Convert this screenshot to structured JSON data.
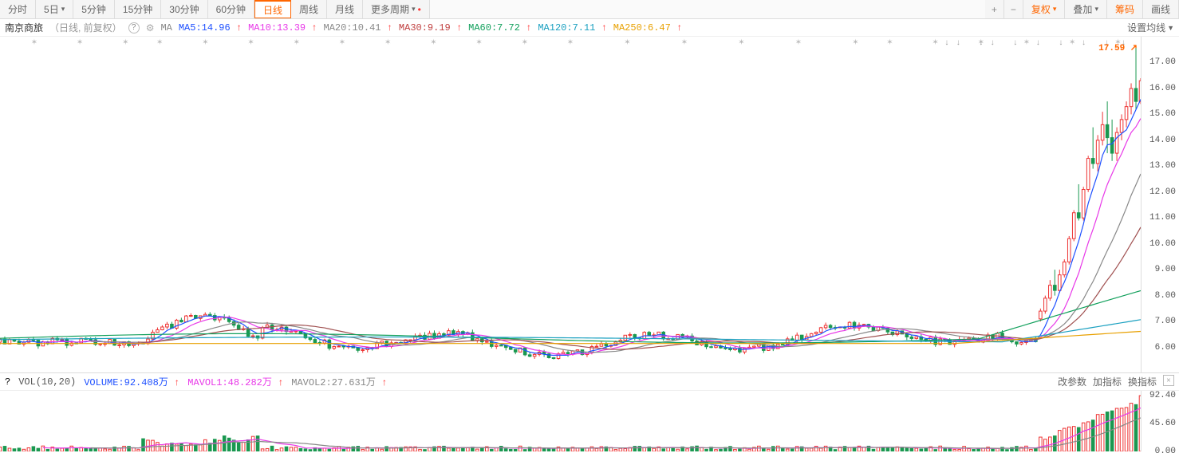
{
  "toolbar": {
    "left": [
      {
        "label": "分时",
        "active": false,
        "caret": false
      },
      {
        "label": "5日",
        "active": false,
        "caret": true
      },
      {
        "label": "5分钟",
        "active": false,
        "caret": false
      },
      {
        "label": "15分钟",
        "active": false,
        "caret": false
      },
      {
        "label": "30分钟",
        "active": false,
        "caret": false
      },
      {
        "label": "60分钟",
        "active": false,
        "caret": false
      },
      {
        "label": "日线",
        "active": true,
        "caret": false
      },
      {
        "label": "周线",
        "active": false,
        "caret": false
      },
      {
        "label": "月线",
        "active": false,
        "caret": false
      },
      {
        "label": "更多周期",
        "active": false,
        "caret": true,
        "dot": true
      }
    ],
    "right": [
      {
        "label": "复权",
        "orange": true,
        "caret": true
      },
      {
        "label": "叠加",
        "caret": true
      },
      {
        "label": "筹码",
        "orange": true
      },
      {
        "label": "画线"
      }
    ],
    "plus": "+",
    "minus": "−"
  },
  "info": {
    "stock": "南京商旅",
    "meta": "（日线, 前复权）",
    "ma_label": "MA",
    "mas": [
      {
        "name": "MA5",
        "val": "14.96",
        "color": "#1e50ff",
        "arrow": "↑"
      },
      {
        "name": "MA10",
        "val": "13.39",
        "color": "#e838e8",
        "arrow": "↑"
      },
      {
        "name": "MA20",
        "val": "10.41",
        "color": "#888888",
        "arrow": "↑"
      },
      {
        "name": "MA30",
        "val": "9.19",
        "color": "#c04040",
        "arrow": "↑"
      },
      {
        "name": "MA60",
        "val": "7.72",
        "color": "#12a05c",
        "arrow": "↑"
      },
      {
        "name": "MA120",
        "val": "7.11",
        "color": "#1aa0c0",
        "arrow": "↑"
      },
      {
        "name": "MA250",
        "val": "6.47",
        "color": "#e8a000",
        "arrow": "↑"
      }
    ],
    "setline": "设置均线"
  },
  "price_chart": {
    "ylim": [
      5,
      18
    ],
    "yticks": [
      6,
      7,
      8,
      9,
      10,
      11,
      12,
      13,
      14,
      15,
      16,
      17
    ],
    "last_price": "17.59",
    "grid_color": "#eeeeee",
    "n": 240,
    "candles_base": {
      "low": 5.9,
      "high": 6.6
    },
    "candles_bump": {
      "start": 30,
      "end": 50,
      "peak": 7.4
    },
    "candles_mid": {
      "low": 6.0,
      "high": 7.0
    },
    "surge": {
      "start_idx": 218,
      "values": [
        {
          "o": 7.1,
          "c": 7.4,
          "h": 7.5,
          "l": 7.0
        },
        {
          "o": 7.4,
          "c": 7.9,
          "h": 8.0,
          "l": 7.3
        },
        {
          "o": 7.9,
          "c": 8.4,
          "h": 8.6,
          "l": 7.8
        },
        {
          "o": 8.4,
          "c": 8.2,
          "h": 9.0,
          "l": 8.0
        },
        {
          "o": 8.2,
          "c": 8.8,
          "h": 9.0,
          "l": 8.1
        },
        {
          "o": 8.8,
          "c": 9.3,
          "h": 9.4,
          "l": 8.7
        },
        {
          "o": 9.3,
          "c": 10.2,
          "h": 10.3,
          "l": 9.2
        },
        {
          "o": 10.2,
          "c": 11.2,
          "h": 11.3,
          "l": 10.1
        },
        {
          "o": 11.2,
          "c": 11.0,
          "h": 12.3,
          "l": 10.9
        },
        {
          "o": 11.0,
          "c": 12.1,
          "h": 12.2,
          "l": 10.9
        },
        {
          "o": 12.1,
          "c": 13.3,
          "h": 13.4,
          "l": 12.0
        },
        {
          "o": 13.3,
          "c": 13.1,
          "h": 14.5,
          "l": 12.9
        },
        {
          "o": 13.1,
          "c": 14.0,
          "h": 14.2,
          "l": 12.8
        },
        {
          "o": 14.0,
          "c": 14.6,
          "h": 15.1,
          "l": 13.8
        },
        {
          "o": 14.6,
          "c": 14.1,
          "h": 15.5,
          "l": 13.5
        },
        {
          "o": 14.1,
          "c": 13.5,
          "h": 14.8,
          "l": 13.2
        },
        {
          "o": 13.5,
          "c": 14.3,
          "h": 14.5,
          "l": 13.2
        },
        {
          "o": 14.3,
          "c": 14.8,
          "h": 15.0,
          "l": 14.0
        },
        {
          "o": 14.8,
          "c": 15.3,
          "h": 15.5,
          "l": 14.5
        },
        {
          "o": 15.3,
          "c": 16.0,
          "h": 16.2,
          "l": 15.0
        },
        {
          "o": 16.0,
          "c": 15.5,
          "h": 17.6,
          "l": 15.2
        },
        {
          "o": 15.5,
          "c": 16.3,
          "h": 16.4,
          "l": 15.4
        }
      ]
    },
    "ma_colors": {
      "ma5": "#1e50ff",
      "ma10": "#e838e8",
      "ma20": "#888888",
      "ma30": "#a05050",
      "ma60": "#12a05c",
      "ma120": "#1aa0c0",
      "ma250": "#e8a000"
    },
    "markers": [
      3,
      7,
      11,
      14,
      18,
      22,
      26,
      30,
      34,
      38,
      42,
      46,
      50,
      55,
      60,
      65,
      70,
      75,
      78,
      82,
      86,
      90,
      94,
      98
    ]
  },
  "vol_info": {
    "label": "VOL(10,20)",
    "volume": {
      "label": "VOLUME",
      "val": "92.408万",
      "color": "#1e50ff"
    },
    "mavol1": {
      "label": "MAVOL1",
      "val": "48.282万",
      "color": "#e838e8"
    },
    "mavol2": {
      "label": "MAVOL2",
      "val": "27.631万",
      "color": "#888888"
    },
    "right": [
      "改参数",
      "加指标",
      "换指标"
    ]
  },
  "vol_chart": {
    "ylim": [
      0,
      100
    ],
    "yticks": [
      0,
      45.6,
      92.4
    ],
    "ytick_labels": [
      "0.00",
      "45.60",
      "92.40"
    ],
    "n": 240
  }
}
